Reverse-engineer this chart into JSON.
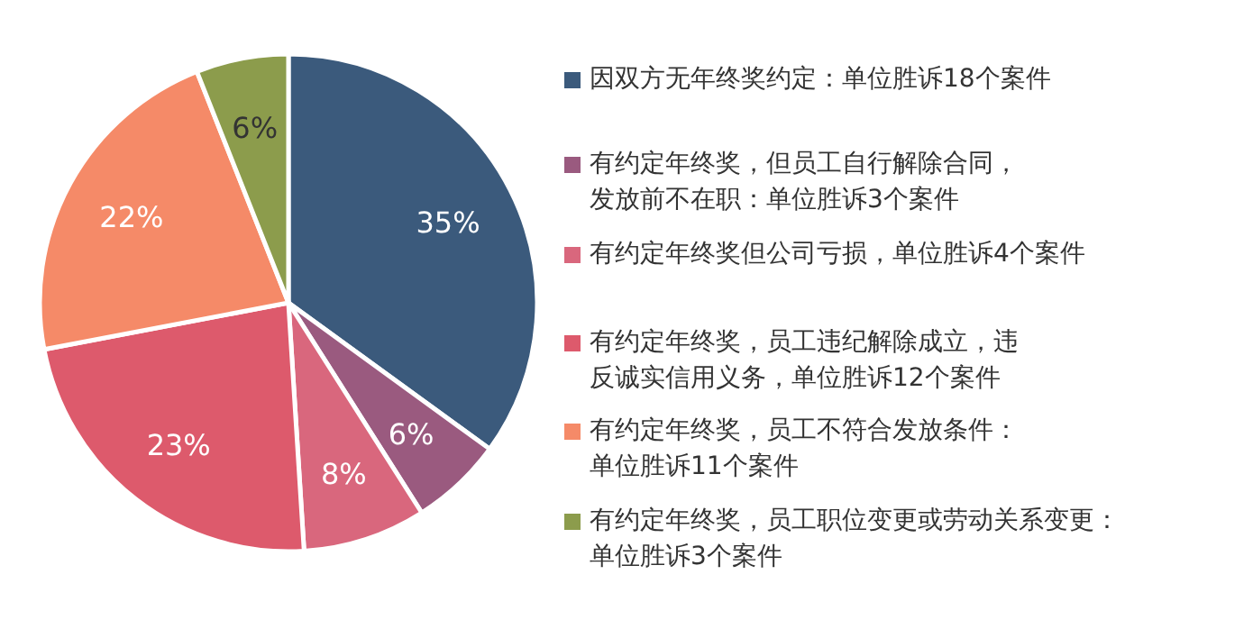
{
  "chart_data": {
    "type": "pie",
    "categories": [
      "因双方无年终奖约定：单位胜诉18个案件",
      "有约定年终奖，但员工自行解除合同，发放前不在职：单位胜诉3个案件",
      "有约定年终奖但公司亏损，单位胜诉4个案件",
      "有约定年终奖，员工违纪解除成立，违反诚实信用义务，单位胜诉12个案件",
      "有约定年终奖，员工不符合发放条件：单位胜诉11个案件",
      "有约定年终奖，员工职位变更或劳动关系变更：单位胜诉3个案件"
    ],
    "values": [
      35,
      6,
      8,
      23,
      22,
      6
    ],
    "value_labels": [
      "35%",
      "6%",
      "8%",
      "23%",
      "22%",
      "6%"
    ],
    "colors": [
      "#3b5a7c",
      "#9a5a7f",
      "#d9677d",
      "#dd5a6c",
      "#f58a68",
      "#8c9c4c"
    ],
    "legend": "right"
  }
}
